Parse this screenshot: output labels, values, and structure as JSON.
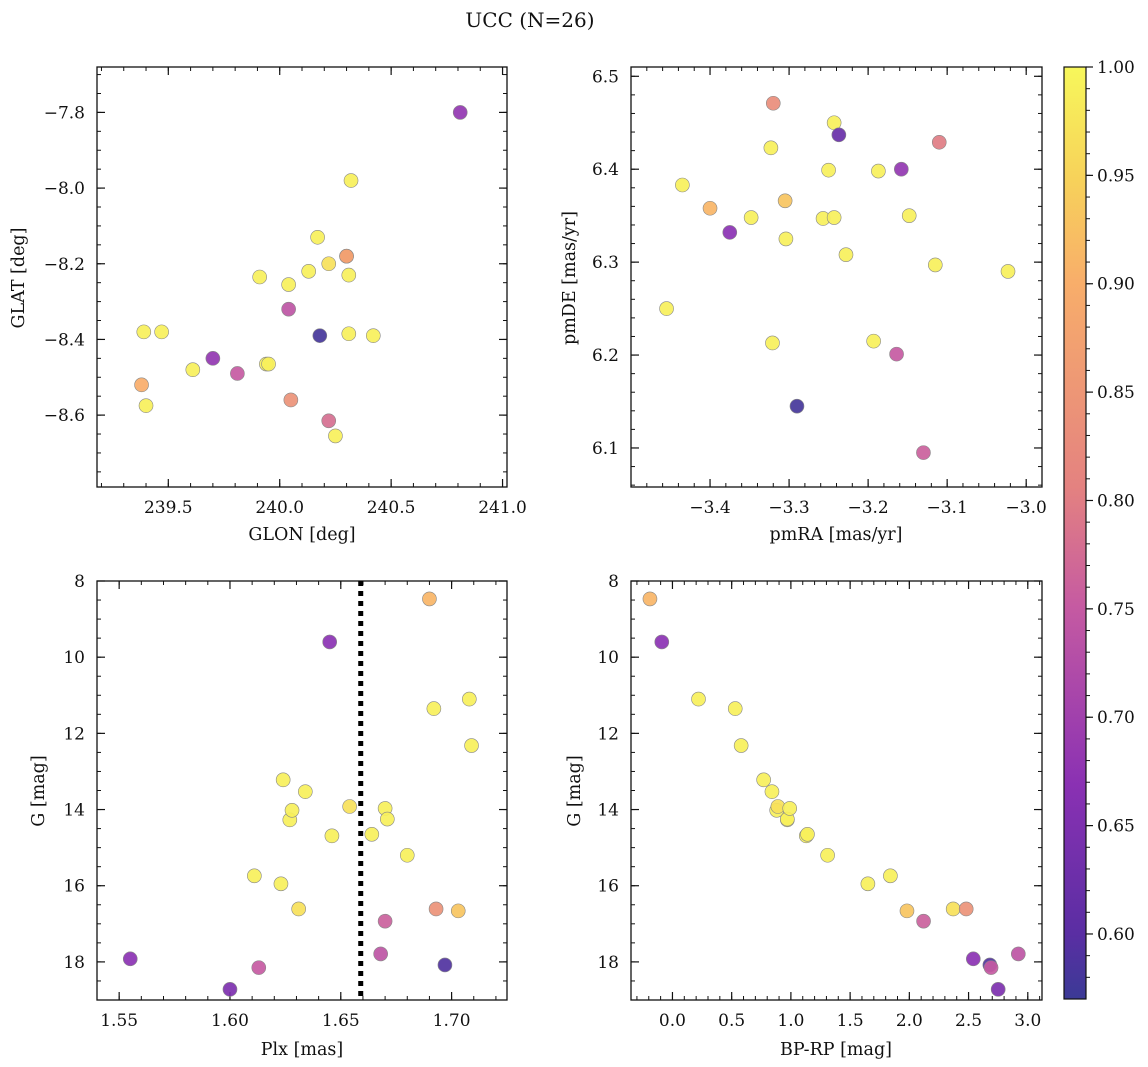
{
  "figure": {
    "title": "UCC (N=26)",
    "colorbar": {
      "min": 0.57,
      "max": 1.0,
      "ticks": [
        "0.60",
        "0.65",
        "0.70",
        "0.75",
        "0.80",
        "0.85",
        "0.90",
        "0.95",
        "1.00"
      ],
      "colormap": "plasma"
    }
  },
  "chart_data": [
    {
      "type": "scatter",
      "xlabel": "GLON [deg]",
      "ylabel": "GLAT [deg]",
      "xlim": [
        239.18,
        241.02
      ],
      "ylim": [
        -8.79,
        -7.68
      ],
      "yticks": [
        "−8.6",
        "−8.4",
        "−8.2",
        "−8.0",
        "−7.8"
      ],
      "xticks": [
        "239.5",
        "240.0",
        "240.5",
        "241.0"
      ],
      "grid": false,
      "points": [
        {
          "x": 239.38,
          "y": -8.52,
          "c": 0.9
        },
        {
          "x": 239.39,
          "y": -8.38,
          "c": 0.99
        },
        {
          "x": 239.4,
          "y": -8.575,
          "c": 0.99
        },
        {
          "x": 239.47,
          "y": -8.38,
          "c": 0.99
        },
        {
          "x": 239.61,
          "y": -8.48,
          "c": 0.99
        },
        {
          "x": 239.7,
          "y": -8.45,
          "c": 0.68
        },
        {
          "x": 239.81,
          "y": -8.49,
          "c": 0.75
        },
        {
          "x": 239.91,
          "y": -8.235,
          "c": 0.99
        },
        {
          "x": 239.94,
          "y": -8.465,
          "c": 0.99
        },
        {
          "x": 239.95,
          "y": -8.465,
          "c": 0.99
        },
        {
          "x": 240.04,
          "y": -8.255,
          "c": 0.99
        },
        {
          "x": 240.04,
          "y": -8.32,
          "c": 0.74
        },
        {
          "x": 240.05,
          "y": -8.56,
          "c": 0.84
        },
        {
          "x": 240.13,
          "y": -8.22,
          "c": 0.99
        },
        {
          "x": 240.17,
          "y": -8.13,
          "c": 0.99
        },
        {
          "x": 240.18,
          "y": -8.39,
          "c": 0.58
        },
        {
          "x": 240.22,
          "y": -8.2,
          "c": 0.97
        },
        {
          "x": 240.22,
          "y": -8.615,
          "c": 0.78
        },
        {
          "x": 240.25,
          "y": -8.655,
          "c": 0.99
        },
        {
          "x": 240.3,
          "y": -8.18,
          "c": 0.88
        },
        {
          "x": 240.31,
          "y": -8.385,
          "c": 0.99
        },
        {
          "x": 240.31,
          "y": -8.23,
          "c": 0.99
        },
        {
          "x": 240.32,
          "y": -7.98,
          "c": 0.99
        },
        {
          "x": 240.42,
          "y": -8.39,
          "c": 0.99
        },
        {
          "x": 240.81,
          "y": -7.8,
          "c": 0.68
        },
        {
          "x": 240.3,
          "y": -8.18,
          "c": 0.87
        }
      ]
    },
    {
      "type": "scatter",
      "xlabel": "pmRA [mas/yr]",
      "ylabel": "pmDE [mas/yr]",
      "xlim": [
        -3.5,
        -2.98
      ],
      "ylim": [
        6.058,
        6.51
      ],
      "yticks": [
        "6.1",
        "6.2",
        "6.3",
        "6.4",
        "6.5"
      ],
      "xticks": [
        "−3.4",
        "−3.3",
        "−3.2",
        "−3.1",
        "−3.0"
      ],
      "grid": false,
      "points": [
        {
          "x": -3.455,
          "y": 6.25,
          "c": 0.99
        },
        {
          "x": -3.435,
          "y": 6.383,
          "c": 0.99
        },
        {
          "x": -3.4,
          "y": 6.358,
          "c": 0.91
        },
        {
          "x": -3.375,
          "y": 6.332,
          "c": 0.67
        },
        {
          "x": -3.348,
          "y": 6.348,
          "c": 0.99
        },
        {
          "x": -3.323,
          "y": 6.423,
          "c": 0.99
        },
        {
          "x": -3.321,
          "y": 6.213,
          "c": 0.99
        },
        {
          "x": -3.32,
          "y": 6.471,
          "c": 0.83
        },
        {
          "x": -3.305,
          "y": 6.366,
          "c": 0.93
        },
        {
          "x": -3.304,
          "y": 6.325,
          "c": 0.99
        },
        {
          "x": -3.29,
          "y": 6.145,
          "c": 0.58
        },
        {
          "x": -3.257,
          "y": 6.347,
          "c": 0.99
        },
        {
          "x": -3.25,
          "y": 6.399,
          "c": 0.99
        },
        {
          "x": -3.243,
          "y": 6.348,
          "c": 0.99
        },
        {
          "x": -3.243,
          "y": 6.45,
          "c": 0.99
        },
        {
          "x": -3.237,
          "y": 6.437,
          "c": 0.62
        },
        {
          "x": -3.228,
          "y": 6.308,
          "c": 0.99
        },
        {
          "x": -3.193,
          "y": 6.215,
          "c": 0.99
        },
        {
          "x": -3.187,
          "y": 6.398,
          "c": 0.99
        },
        {
          "x": -3.164,
          "y": 6.201,
          "c": 0.75
        },
        {
          "x": -3.158,
          "y": 6.4,
          "c": 0.68
        },
        {
          "x": -3.148,
          "y": 6.35,
          "c": 0.99
        },
        {
          "x": -3.13,
          "y": 6.095,
          "c": 0.76
        },
        {
          "x": -3.115,
          "y": 6.297,
          "c": 0.99
        },
        {
          "x": -3.11,
          "y": 6.429,
          "c": 0.8
        },
        {
          "x": -3.023,
          "y": 6.29,
          "c": 0.99
        }
      ]
    },
    {
      "type": "scatter",
      "xlabel": "Plx [mas]",
      "ylabel": "G [mag]",
      "xlim": [
        1.54,
        1.725
      ],
      "ylim": [
        19.0,
        8.0
      ],
      "yticks": [
        "8",
        "10",
        "12",
        "14",
        "16",
        "18"
      ],
      "xticks": [
        "1.55",
        "1.60",
        "1.65",
        "1.70"
      ],
      "grid": false,
      "vline": {
        "x": 1.659,
        "style": "dotted"
      },
      "points": [
        {
          "x": 1.555,
          "y": 17.92,
          "c": 0.67
        },
        {
          "x": 1.6,
          "y": 18.72,
          "c": 0.65
        },
        {
          "x": 1.611,
          "y": 15.74,
          "c": 0.99
        },
        {
          "x": 1.613,
          "y": 18.15,
          "c": 0.75
        },
        {
          "x": 1.623,
          "y": 15.95,
          "c": 0.99
        },
        {
          "x": 1.624,
          "y": 13.22,
          "c": 0.99
        },
        {
          "x": 1.627,
          "y": 14.27,
          "c": 0.99
        },
        {
          "x": 1.628,
          "y": 14.02,
          "c": 0.99
        },
        {
          "x": 1.631,
          "y": 16.61,
          "c": 0.97
        },
        {
          "x": 1.634,
          "y": 13.53,
          "c": 0.99
        },
        {
          "x": 1.645,
          "y": 9.6,
          "c": 0.67
        },
        {
          "x": 1.646,
          "y": 14.69,
          "c": 0.99
        },
        {
          "x": 1.654,
          "y": 13.92,
          "c": 0.97
        },
        {
          "x": 1.664,
          "y": 14.65,
          "c": 0.99
        },
        {
          "x": 1.668,
          "y": 17.79,
          "c": 0.74
        },
        {
          "x": 1.67,
          "y": 16.93,
          "c": 0.76
        },
        {
          "x": 1.67,
          "y": 13.97,
          "c": 0.99
        },
        {
          "x": 1.671,
          "y": 14.25,
          "c": 0.99
        },
        {
          "x": 1.68,
          "y": 15.2,
          "c": 0.99
        },
        {
          "x": 1.69,
          "y": 8.47,
          "c": 0.91
        },
        {
          "x": 1.692,
          "y": 11.35,
          "c": 0.99
        },
        {
          "x": 1.693,
          "y": 16.61,
          "c": 0.84
        },
        {
          "x": 1.697,
          "y": 18.08,
          "c": 0.59
        },
        {
          "x": 1.703,
          "y": 16.66,
          "c": 0.93
        },
        {
          "x": 1.708,
          "y": 11.1,
          "c": 0.99
        },
        {
          "x": 1.709,
          "y": 12.32,
          "c": 0.99
        }
      ]
    },
    {
      "type": "scatter",
      "xlabel": "BP-RP [mag]",
      "ylabel": "G [mag]",
      "xlim": [
        -0.35,
        3.12
      ],
      "ylim": [
        19.0,
        8.0
      ],
      "yticks": [
        "8",
        "10",
        "12",
        "14",
        "16",
        "18"
      ],
      "xticks": [
        "0.0",
        "0.5",
        "1.0",
        "1.5",
        "2.0",
        "2.5",
        "3.0"
      ],
      "grid": false,
      "points": [
        {
          "x": -0.19,
          "y": 8.47,
          "c": 0.91
        },
        {
          "x": -0.09,
          "y": 9.6,
          "c": 0.67
        },
        {
          "x": 0.22,
          "y": 11.1,
          "c": 0.99
        },
        {
          "x": 0.53,
          "y": 11.35,
          "c": 0.99
        },
        {
          "x": 0.58,
          "y": 12.32,
          "c": 0.99
        },
        {
          "x": 0.77,
          "y": 13.22,
          "c": 0.99
        },
        {
          "x": 0.84,
          "y": 13.53,
          "c": 0.99
        },
        {
          "x": 0.88,
          "y": 14.02,
          "c": 0.99
        },
        {
          "x": 0.89,
          "y": 13.92,
          "c": 0.97
        },
        {
          "x": 0.97,
          "y": 14.27,
          "c": 0.99
        },
        {
          "x": 0.97,
          "y": 14.25,
          "c": 0.99
        },
        {
          "x": 0.99,
          "y": 13.97,
          "c": 0.99
        },
        {
          "x": 1.13,
          "y": 14.69,
          "c": 0.99
        },
        {
          "x": 1.14,
          "y": 14.65,
          "c": 0.99
        },
        {
          "x": 1.31,
          "y": 15.2,
          "c": 0.99
        },
        {
          "x": 1.65,
          "y": 15.95,
          "c": 0.99
        },
        {
          "x": 1.84,
          "y": 15.74,
          "c": 0.99
        },
        {
          "x": 1.98,
          "y": 16.66,
          "c": 0.93
        },
        {
          "x": 2.12,
          "y": 16.93,
          "c": 0.76
        },
        {
          "x": 2.37,
          "y": 16.61,
          "c": 0.97
        },
        {
          "x": 2.48,
          "y": 16.61,
          "c": 0.84
        },
        {
          "x": 2.54,
          "y": 17.92,
          "c": 0.67
        },
        {
          "x": 2.68,
          "y": 18.08,
          "c": 0.59
        },
        {
          "x": 2.69,
          "y": 18.15,
          "c": 0.75
        },
        {
          "x": 2.75,
          "y": 18.72,
          "c": 0.65
        },
        {
          "x": 2.92,
          "y": 17.79,
          "c": 0.74
        }
      ]
    }
  ]
}
